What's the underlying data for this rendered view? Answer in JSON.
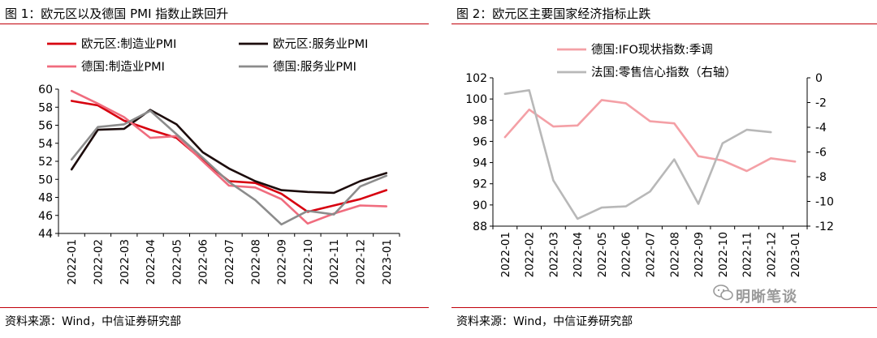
{
  "chart_data": [
    {
      "type": "line",
      "title": "图 1：欧元区以及德国 PMI 指数止跌回升",
      "source": "资料来源：Wind，中信证券研究部",
      "categories": [
        "2022-01",
        "2022-02",
        "2022-03",
        "2022-04",
        "2022-05",
        "2022-06",
        "2022-07",
        "2022-08",
        "2022-09",
        "2022-10",
        "2022-11",
        "2022-12",
        "2023-01"
      ],
      "ylim": [
        44,
        60
      ],
      "yticks": [
        "44",
        "46",
        "48",
        "50",
        "52",
        "54",
        "56",
        "58",
        "60"
      ],
      "legend_position": "top",
      "series": [
        {
          "name": "欧元区:制造业PMI",
          "color": "#d7000f",
          "values": [
            58.7,
            58.2,
            56.5,
            55.5,
            54.6,
            52.1,
            49.8,
            49.6,
            48.4,
            46.4,
            47.1,
            47.8,
            48.8
          ]
        },
        {
          "name": "欧元区:服务业PMI",
          "color": "#1c0c0c",
          "values": [
            51.1,
            55.5,
            55.6,
            57.7,
            56.1,
            53.0,
            51.2,
            49.8,
            48.8,
            48.6,
            48.5,
            49.8,
            50.7
          ]
        },
        {
          "name": "德国:制造业PMI",
          "color": "#f06c7e",
          "values": [
            59.8,
            58.4,
            56.9,
            54.6,
            54.8,
            52.0,
            49.3,
            49.1,
            47.8,
            45.1,
            46.2,
            47.1,
            47.0
          ]
        },
        {
          "name": "德国:服务业PMI",
          "color": "#8c8c8c",
          "values": [
            52.2,
            55.8,
            56.1,
            57.6,
            55.0,
            52.4,
            49.7,
            47.7,
            45.0,
            46.5,
            46.1,
            49.2,
            50.4
          ]
        }
      ]
    },
    {
      "type": "line",
      "title": "图 2：欧元区主要国家经济指标止跌",
      "source": "资料来源：Wind，中信证券研究部",
      "categories": [
        "2022-01",
        "2022-02",
        "2022-03",
        "2022-04",
        "2022-05",
        "2022-06",
        "2022-07",
        "2022-08",
        "2022-09",
        "2022-10",
        "2022-11",
        "2022-12",
        "2023-01"
      ],
      "ylim": [
        88,
        102
      ],
      "yticks": [
        "88",
        "90",
        "92",
        "94",
        "96",
        "98",
        "100",
        "102"
      ],
      "y2lim": [
        -12,
        0
      ],
      "y2ticks": [
        "-12",
        "-10",
        "-8",
        "-6",
        "-4",
        "-2",
        "0"
      ],
      "legend_position": "top",
      "series": [
        {
          "name": "德国:IFO现状指数:季调",
          "color": "#f4a0a6",
          "axis": "left",
          "values": [
            96.4,
            99.0,
            97.4,
            97.5,
            99.9,
            99.6,
            97.9,
            97.7,
            94.6,
            94.2,
            93.2,
            94.4,
            94.1
          ]
        },
        {
          "name": "法国:零售信心指数（右轴）",
          "color": "#b8b8b8",
          "axis": "right",
          "values": [
            -1.3,
            -1.0,
            -8.3,
            -11.4,
            -10.5,
            -10.4,
            -9.2,
            -6.6,
            -10.2,
            -5.3,
            -4.2,
            -4.4,
            null
          ]
        }
      ]
    }
  ],
  "watermark": "明晰笔谈"
}
